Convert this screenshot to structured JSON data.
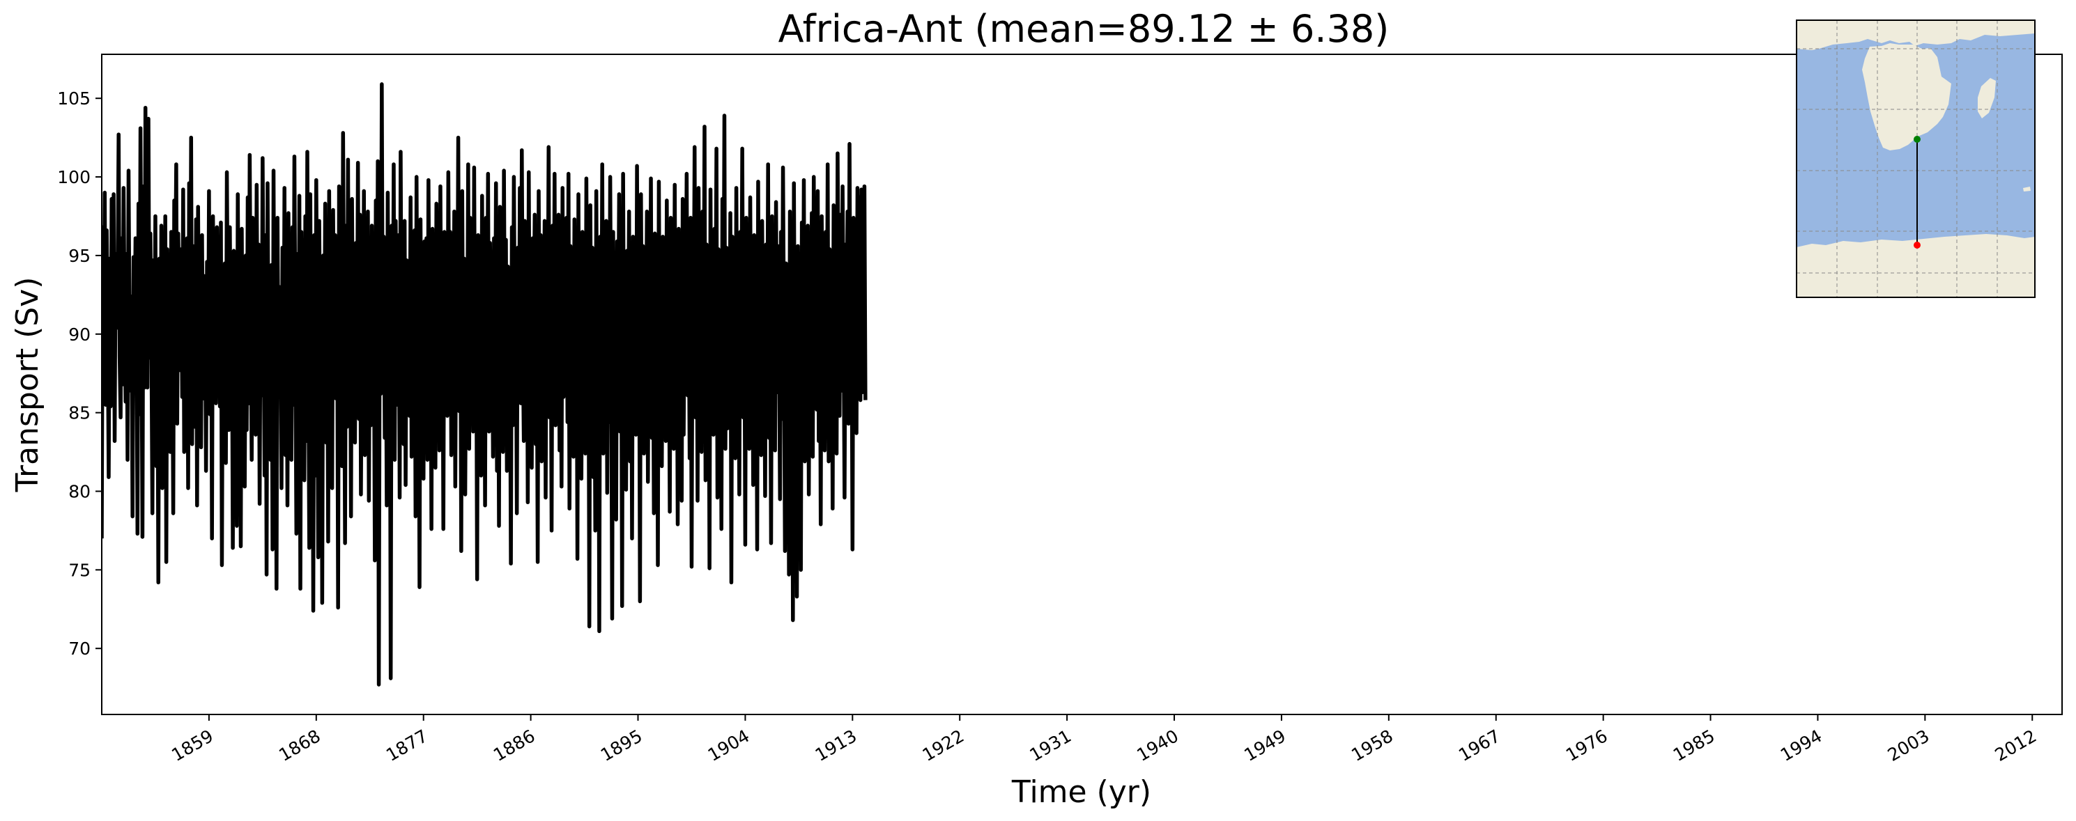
{
  "chart_data": {
    "type": "line",
    "title": "Africa-Ant (mean=89.12 ± 6.38)",
    "xlabel": "Time (yr)",
    "ylabel": "Transport (Sv)",
    "xlim": [
      1850.0,
      2014.5
    ],
    "ylim": [
      65.8,
      107.8
    ],
    "x_ticks": [
      1859,
      1868,
      1877,
      1886,
      1895,
      1904,
      1913,
      1922,
      1931,
      1940,
      1949,
      1958,
      1967,
      1976,
      1985,
      1994,
      2003,
      2012
    ],
    "y_ticks": [
      70,
      75,
      80,
      85,
      90,
      95,
      100,
      105
    ],
    "grid": false,
    "series": [
      {
        "color": "#000000",
        "x_start": 1850.0,
        "x_step": 0.0833333,
        "values": [
          77,
          96.8,
          88.2,
          99,
          85.5,
          96.6,
          90.4,
          80.9,
          94.8,
          85.4,
          98.6,
          90.2,
          98.9,
          83.2,
          95.1,
          90.4,
          93.2,
          102.7,
          88.6,
          84.7,
          96.1,
          86.8,
          99.3,
          91.5,
          85.7,
          95.1,
          82,
          100.4,
          90.2,
          86.4,
          92.4,
          78.4,
          94.9,
          88.7,
          96.1,
          90.6,
          77.3,
          98.3,
          84.9,
          103.1,
          90.8,
          77.1,
          99.4,
          86.6,
          104.4,
          88.8,
          86.6,
          103.7,
          88.5,
          96.4,
          89.5,
          78.6,
          94.7,
          87.4,
          97.5,
          81.6,
          91,
          74.2,
          94.8,
          82.7,
          96.9,
          80.2,
          93.6,
          89,
          97.5,
          75.5,
          95.4,
          88.6,
          92.1,
          82.5,
          96.5,
          90.7,
          78.6,
          98.5,
          92.8,
          100.8,
          84.3,
          96.4,
          92.5,
          87.7,
          95.4,
          86,
          99.2,
          82.5,
          94.8,
          91,
          96.1,
          80.2,
          99.6,
          88.4,
          102.5,
          83,
          95.6,
          90.7,
          84.1,
          97.3,
          79.1,
          98.1,
          88.2,
          91.6,
          82.8,
          96.3,
          85.9,
          93.7,
          92.5,
          81.3,
          94.6,
          86.5,
          99.1,
          84.9,
          96,
          77,
          97.5,
          89.9,
          92.9,
          85.6,
          96.8,
          88.4,
          90.7,
          85.4,
          97.1,
          75.3,
          93.6,
          87.4,
          94.5,
          81.8,
          100.3,
          90.8,
          83.9,
          96.8,
          87.1,
          92.3,
          76.4,
          95.3,
          86.8,
          93.4,
          77.8,
          98.9,
          88.6,
          94.7,
          76.5,
          96.7,
          86,
          92.5,
          80.3,
          95,
          83.9,
          98.7,
          85.6,
          101.4,
          90.1,
          82,
          97.4,
          87.9,
          94.6,
          83.6,
          99.5,
          88.1,
          95.7,
          79.2,
          93.6,
          86.1,
          101.2,
          90.8,
          81,
          96.3,
          74.7,
          99.6,
          87.4,
          92.5,
          82,
          94.4,
          76.3,
          100.4,
          84.8,
          91.6,
          73.8,
          97.4,
          86.4,
          93,
          89.4,
          80.2,
          95.5,
          84.1,
          99.3,
          82.3,
          94,
          79.1,
          97.7,
          86.5,
          90.8,
          82,
          96.8,
          85.5,
          101.3,
          89.4,
          77.3,
          95.1,
          82.5,
          98.8,
          73.8,
          96.5,
          87.2,
          92.1,
          80.7,
          97.5,
          83.2,
          101.6,
          88.7,
          76.4,
          98.9,
          84.5,
          94.3,
          72.4,
          96.3,
          81,
          99.8,
          90.1,
          75.8,
          97.2,
          88.3,
          93.4,
          72.9,
          95,
          84.8,
          98.3,
          83.1,
          92.5,
          76.8,
          99.1,
          86.6,
          94.1,
          80.2,
          97.9,
          87.3,
          96.3,
          85.9,
          93.4,
          72.6,
          99.4,
          88.1,
          96.5,
          81.6,
          102.8,
          90.5,
          76.7,
          96.9,
          84.1,
          101.1,
          85.3,
          95.7,
          78.4,
          98.6,
          89,
          93.3,
          83.1,
          95.8,
          87.9,
          100.9,
          84.6,
          97.6,
          79.8,
          91.4,
          86.3,
          99.1,
          82.3,
          94.6,
          89.5,
          97.8,
          79.4,
          93.6,
          84.2,
          96.9,
          88.7,
          91.7,
          75.6,
          98.5,
          85.3,
          101,
          67.7,
          93.5,
          86.2,
          105.9,
          87.9,
          96.2,
          83.4,
          92.9,
          79.1,
          99,
          85.3,
          93.5,
          68.1,
          96.9,
          87.4,
          100.8,
          82,
          97.2,
          89.1,
          85.5,
          96.3,
          79.6,
          101.6,
          87,
          93.2,
          83,
          97.2,
          80.4,
          94.7,
          88,
          92.1,
          84.8,
          98.7,
          82.2,
          92.9,
          87.1,
          96.6,
          78.4,
          100,
          86.3,
          93.9,
          73.9,
          97.3,
          85.8,
          91.2,
          80.8,
          95.9,
          88.8,
          96.1,
          82,
          99.8,
          89.9,
          94.5,
          77.6,
          96.7,
          87.4,
          92.5,
          81.5,
          98.3,
          85,
          95.4,
          82.6,
          99.4,
          87.3,
          94.7,
          77.6,
          96.5,
          89.1,
          93.4,
          84.8,
          100.3,
          88.9,
          96.5,
          82.3,
          94,
          86.2,
          97.8,
          80.3,
          92.8,
          89.1,
          102.5,
          85.1,
          96.6,
          76.2,
          99.1,
          85.2,
          94.8,
          79.8,
          91.6,
          87.3,
          100.8,
          82.7,
          97.4,
          89.7,
          94.3,
          83.8,
          100.6,
          86.9,
          93.8,
          74.4,
          96.3,
          88.9,
          92.1,
          81,
          98.8,
          85.9,
          94.4,
          79.1,
          97.4,
          87.4,
          100.2,
          83.8,
          95.8,
          89.7,
          92.1,
          82.2,
          96.1,
          86.2,
          99.6,
          81.3,
          94.6,
          77.8,
          98.1,
          85.2,
          93.9,
          82.5,
          100.4,
          87.9,
          96,
          81.3,
          94.3,
          88.5,
          90.5,
          75.4,
          96.8,
          84.2,
          100,
          89.5,
          92.9,
          78.6,
          95.5,
          86.4,
          99.3,
          85.6,
          101.7,
          89.5,
          83.2,
          97.2,
          88.9,
          96.6,
          79.3,
          100.3,
          87.2,
          93.5,
          81.5,
          96.1,
          89.9,
          97.6,
          83,
          92.4,
          75.5,
          99.1,
          86.4,
          96.3,
          81.9,
          93.6,
          89,
          97.2,
          79.6,
          95.1,
          88.5,
          101.9,
          84.7,
          93.8,
          77.5,
          96.9,
          86.8,
          100.2,
          84.2,
          92.4,
          87.3,
          97.6,
          82.6,
          94.1,
          80.3,
          99.3,
          86,
          93.5,
          88.8,
          97.4,
          84.4,
          100.2,
          78.9,
          95.6,
          88.4,
          92.9,
          82.2,
          97.3,
          87.6,
          95.8,
          75.7,
          98.9,
          85.2,
          92.3,
          80.8,
          96.5,
          88.6,
          94.9,
          82.4,
          99.9,
          87.7,
          93.4,
          71.4,
          98.2,
          85.8,
          95.5,
          80.9,
          92.3,
          77.5,
          99.1,
          85.5,
          94.3,
          71.1,
          96.2,
          86.6,
          100.8,
          82.4,
          93.8,
          89.1,
          97.2,
          79.9,
          94.7,
          84.4,
          100,
          88.1,
          71.9,
          96.5,
          84.1,
          92.5,
          78.2,
          95.9,
          89.1,
          98.9,
          83.8,
          94.6,
          72.7,
          100.2,
          85.5,
          92.3,
          80.1,
          95.3,
          88.2,
          97.8,
          81.9,
          94.4,
          77,
          96.2,
          89.3,
          92.3,
          83.6,
          100.7,
          86.4,
          94.2,
          73,
          98.9,
          87.3,
          95.6,
          82.4,
          93.1,
          88,
          97.8,
          80.6,
          94.9,
          86,
          99.9,
          83.4,
          92.5,
          78.6,
          96.4,
          88.8,
          94.5,
          75.3,
          99.7,
          86.8,
          92.9,
          81.6,
          96.2,
          89.6,
          94.8,
          83.2,
          98.5,
          86.2,
          91.9,
          78.7,
          97.4,
          88.4,
          95,
          82.7,
          99.5,
          84.9,
          92.8,
          77.9,
          96.7,
          88.7,
          93.6,
          79.4,
          98.6,
          83.6,
          95.2,
          89.1,
          100.2,
          86.1,
          93.9,
          82.1,
          97.4,
          75.2,
          94.7,
          88.8,
          101.9,
          84.7,
          96.1,
          79.4,
          99.3,
          87.1,
          93.5,
          82.5,
          97.8,
          88.1,
          103.2,
          80.7,
          95.7,
          86.8,
          94.3,
          75.1,
          99.2,
          85.1,
          92.7,
          83.6,
          96.7,
          88.9,
          101.8,
          79.6,
          95.4,
          86.6,
          92.6,
          77.6,
          98.6,
          88.2,
          103.9,
          82.7,
          95.5,
          84,
          92.3,
          86.7,
          97.7,
          74.2,
          96.2,
          88.4,
          93.5,
          82.1,
          99.3,
          87.2,
          94.8,
          79.8,
          96.5,
          88.6,
          101.8,
          84.7,
          93.9,
          76.6,
          97.4,
          87.1,
          95.1,
          82.7,
          98.7,
          86.4,
          92.5,
          80.4,
          96.3,
          88.3,
          93.6,
          76.3,
          99.7,
          85.6,
          94.6,
          82.3,
          97.2,
          88.5,
          91.7,
          79.7,
          95.7,
          86.6,
          100.8,
          83.4,
          93.2,
          76.7,
          97.5,
          87.9,
          93,
          82.6,
          98.4,
          86.3,
          95.6,
          90.1,
          79.5,
          96.5,
          84.6,
          100.6,
          89.9,
          76.2,
          94.5,
          87.9,
          92.3,
          74.7,
          97.8,
          86,
          93.9,
          71.8,
          99.6,
          85.4,
          94.2,
          73.3,
          95.6,
          87.7,
          92.9,
          75,
          97.1,
          84.9,
          99.8,
          81.9,
          94.2,
          88.8,
          96.9,
          79.8,
          93.6,
          87.1,
          97.7,
          82.2,
          100,
          88.2,
          94.8,
          85.2,
          99.1,
          83.2,
          94.6,
          77.9,
          97.5,
          88.9,
          91.9,
          82.6,
          96.5,
          86.1,
          100.8,
          81.9,
          95.4,
          87.7,
          93.6,
          78.9,
          98.2,
          88.8,
          95.7,
          82.4,
          101.5,
          90.6,
          84.8,
          97.6,
          86.4,
          99.4,
          90.5,
          79.6,
          95.7,
          89.7,
          97.8,
          84.3,
          102.1,
          86.9,
          93.4,
          76.3,
          97.4,
          88.5,
          95.5,
          83.7,
          99.3,
          89.6,
          98.7,
          85.8,
          99.2,
          86.3,
          95,
          99.4,
          85.8
        ]
      }
    ]
  },
  "inset_map": {
    "ocean_color": "#98b7e2",
    "land_color": "#efecdc",
    "north_marker_color": "#008000",
    "south_marker_color": "#ff0000"
  }
}
